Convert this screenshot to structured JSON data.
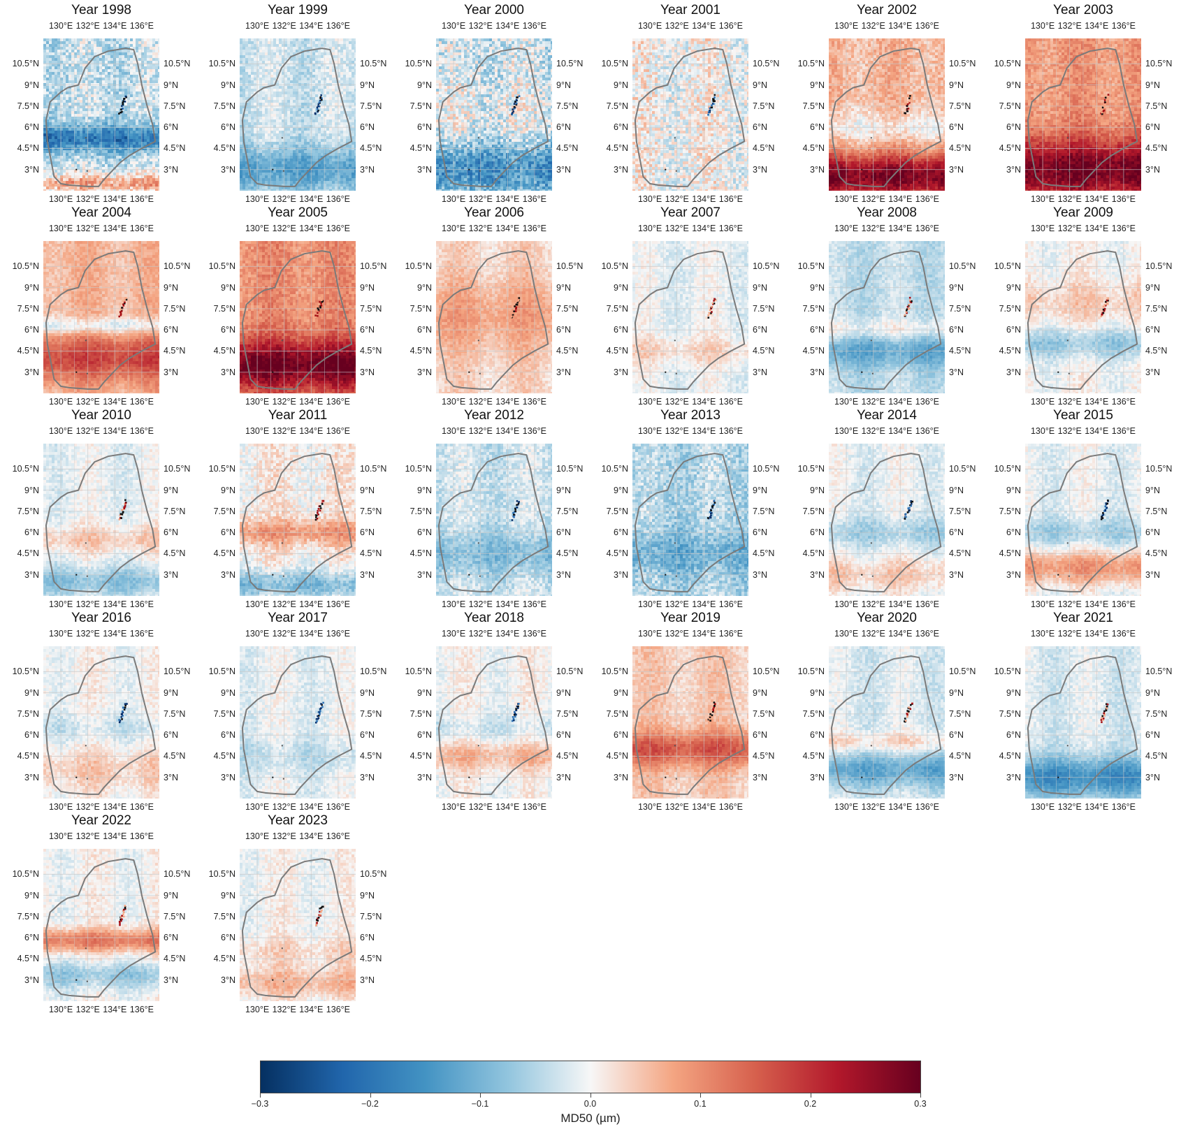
{
  "figure": {
    "panels": [
      {
        "title": "Year 1998",
        "pattern": {
          "base": -0.04,
          "bands": [
            {
              "lat": 5.2,
              "w": 0.9,
              "v": -0.16
            },
            {
              "lat": 2.0,
              "w": 0.7,
              "v": 0.12
            }
          ],
          "noise": 0.05,
          "feature": "blue"
        }
      },
      {
        "title": "Year 1999",
        "pattern": {
          "base": -0.03,
          "bands": [
            {
              "lat": 3.0,
              "w": 1.6,
              "v": -0.1
            }
          ],
          "noise": 0.03,
          "feature": "blue"
        }
      },
      {
        "title": "Year 2000",
        "pattern": {
          "base": -0.03,
          "bands": [
            {
              "lat": 3.0,
              "w": 1.8,
              "v": -0.13
            },
            {
              "lat": 7.0,
              "w": 2.0,
              "v": 0.02
            }
          ],
          "noise": 0.06,
          "feature": "blue"
        }
      },
      {
        "title": "Year 2001",
        "pattern": {
          "base": 0.0,
          "bands": [],
          "noise": 0.05,
          "feature": "blue"
        }
      },
      {
        "title": "Year 2002",
        "pattern": {
          "base": 0.06,
          "bands": [
            {
              "lat": 2.5,
              "w": 1.6,
              "v": 0.22
            },
            {
              "lat": 6.0,
              "w": 1.2,
              "v": -0.05
            }
          ],
          "noise": 0.03,
          "feature": "red"
        }
      },
      {
        "title": "Year 2003",
        "pattern": {
          "base": 0.09,
          "bands": [
            {
              "lat": 3.0,
              "w": 2.2,
              "v": 0.2
            }
          ],
          "noise": 0.03,
          "feature": "red"
        }
      },
      {
        "title": "Year 2004",
        "pattern": {
          "base": 0.06,
          "bands": [
            {
              "lat": 4.0,
              "w": 1.6,
              "v": 0.12
            },
            {
              "lat": 6.3,
              "w": 0.6,
              "v": -0.08
            }
          ],
          "noise": 0.02,
          "feature": "red"
        }
      },
      {
        "title": "Year 2005",
        "pattern": {
          "base": 0.1,
          "bands": [
            {
              "lat": 3.5,
              "w": 1.8,
              "v": 0.2
            }
          ],
          "noise": 0.03,
          "feature": "red"
        }
      },
      {
        "title": "Year 2006",
        "pattern": {
          "base": 0.03,
          "bands": [
            {
              "lat": 7.0,
              "w": 2.5,
              "v": 0.05
            }
          ],
          "noise": 0.02,
          "feature": "red"
        }
      },
      {
        "title": "Year 2007",
        "pattern": {
          "base": -0.01,
          "bands": [
            {
              "lat": 4.5,
              "w": 1.0,
              "v": 0.04
            }
          ],
          "noise": 0.02,
          "feature": "red"
        }
      },
      {
        "title": "Year 2008",
        "pattern": {
          "base": -0.04,
          "bands": [
            {
              "lat": 4.5,
              "w": 1.2,
              "v": -0.08
            },
            {
              "lat": 6.0,
              "w": 0.8,
              "v": 0.05
            }
          ],
          "noise": 0.02,
          "feature": "red"
        }
      },
      {
        "title": "Year 2009",
        "pattern": {
          "base": 0.0,
          "bands": [
            {
              "lat": 5.0,
              "w": 1.0,
              "v": -0.07
            },
            {
              "lat": 8.0,
              "w": 1.5,
              "v": 0.04
            }
          ],
          "noise": 0.02,
          "feature": "red"
        }
      },
      {
        "title": "Year 2010",
        "pattern": {
          "base": -0.01,
          "bands": [
            {
              "lat": 2.5,
              "w": 1.0,
              "v": -0.07
            },
            {
              "lat": 5.5,
              "w": 1.0,
              "v": 0.05
            }
          ],
          "noise": 0.02,
          "feature": "red"
        }
      },
      {
        "title": "Year 2011",
        "pattern": {
          "base": 0.01,
          "bands": [
            {
              "lat": 2.3,
              "w": 1.0,
              "v": -0.1
            },
            {
              "lat": 6.0,
              "w": 0.9,
              "v": 0.08
            }
          ],
          "noise": 0.03,
          "feature": "red"
        }
      },
      {
        "title": "Year 2012",
        "pattern": {
          "base": -0.03,
          "bands": [
            {
              "lat": 4.5,
              "w": 1.5,
              "v": -0.06
            }
          ],
          "noise": 0.03,
          "feature": "blue"
        }
      },
      {
        "title": "Year 2013",
        "pattern": {
          "base": -0.05,
          "bands": [
            {
              "lat": 4.5,
              "w": 1.5,
              "v": -0.06
            }
          ],
          "noise": 0.04,
          "feature": "blue"
        }
      },
      {
        "title": "Year 2014",
        "pattern": {
          "base": -0.01,
          "bands": [
            {
              "lat": 3.0,
              "w": 1.2,
              "v": 0.05
            },
            {
              "lat": 6.0,
              "w": 1.0,
              "v": -0.05
            }
          ],
          "noise": 0.02,
          "feature": "blue"
        }
      },
      {
        "title": "Year 2015",
        "pattern": {
          "base": -0.01,
          "bands": [
            {
              "lat": 3.5,
              "w": 1.2,
              "v": 0.1
            },
            {
              "lat": 6.0,
              "w": 1.0,
              "v": -0.05
            }
          ],
          "noise": 0.02,
          "feature": "blue"
        }
      },
      {
        "title": "Year 2016",
        "pattern": {
          "base": 0.0,
          "bands": [
            {
              "lat": 3.5,
              "w": 1.5,
              "v": 0.04
            },
            {
              "lat": 6.5,
              "w": 1.0,
              "v": -0.03
            }
          ],
          "noise": 0.02,
          "feature": "blue"
        }
      },
      {
        "title": "Year 2017",
        "pattern": {
          "base": -0.01,
          "bands": [
            {
              "lat": 4.5,
              "w": 1.2,
              "v": -0.03
            }
          ],
          "noise": 0.02,
          "feature": "blue"
        }
      },
      {
        "title": "Year 2018",
        "pattern": {
          "base": 0.0,
          "bands": [
            {
              "lat": 4.5,
              "w": 1.0,
              "v": 0.06
            },
            {
              "lat": 6.5,
              "w": 1.0,
              "v": -0.03
            }
          ],
          "noise": 0.02,
          "feature": "blue"
        }
      },
      {
        "title": "Year 2019",
        "pattern": {
          "base": 0.04,
          "bands": [
            {
              "lat": 5.0,
              "w": 1.2,
              "v": 0.12
            }
          ],
          "noise": 0.02,
          "feature": "red"
        }
      },
      {
        "title": "Year 2020",
        "pattern": {
          "base": -0.02,
          "bands": [
            {
              "lat": 3.5,
              "w": 1.2,
              "v": -0.1
            },
            {
              "lat": 5.5,
              "w": 0.7,
              "v": 0.05
            }
          ],
          "noise": 0.02,
          "feature": "red"
        }
      },
      {
        "title": "Year 2021",
        "pattern": {
          "base": -0.02,
          "bands": [
            {
              "lat": 3.0,
              "w": 1.4,
              "v": -0.14
            }
          ],
          "noise": 0.02,
          "feature": "red"
        }
      },
      {
        "title": "Year 2022",
        "pattern": {
          "base": 0.0,
          "bands": [
            {
              "lat": 5.8,
              "w": 0.8,
              "v": 0.12
            },
            {
              "lat": 3.3,
              "w": 0.9,
              "v": -0.07
            }
          ],
          "noise": 0.02,
          "feature": "red"
        }
      },
      {
        "title": "Year 2023",
        "pattern": {
          "base": 0.0,
          "bands": [
            {
              "lat": 2.8,
              "w": 1.0,
              "v": 0.06
            },
            {
              "lat": 5.0,
              "w": 1.0,
              "v": 0.03
            }
          ],
          "noise": 0.02,
          "feature": "red"
        }
      }
    ],
    "lon_ticks": [
      "130°E",
      "132°E",
      "134°E",
      "136°E"
    ],
    "lat_ticks": [
      "10.5°N",
      "9°N",
      "7.5°N",
      "6°N",
      "4.5°N",
      "3°N"
    ],
    "lon_values": [
      130,
      132,
      134,
      136
    ],
    "lat_values": [
      10.5,
      9,
      7.5,
      6,
      4.5,
      3
    ],
    "extent": {
      "lon": [
        128.7,
        137.3
      ],
      "lat": [
        1.5,
        12.3
      ]
    },
    "outline_color": "#7a7a7a"
  },
  "colorbar": {
    "label": "MD50 (µm)",
    "ticks": [
      "−0.3",
      "−0.2",
      "−0.1",
      "0.0",
      "0.1",
      "0.2",
      "0.3"
    ],
    "range": [
      -0.3,
      0.3
    ],
    "colors": [
      "#053061",
      "#2166ac",
      "#4393c3",
      "#92c5de",
      "#f7f7f7",
      "#f4a582",
      "#d6604d",
      "#b2182b",
      "#67001f"
    ]
  }
}
